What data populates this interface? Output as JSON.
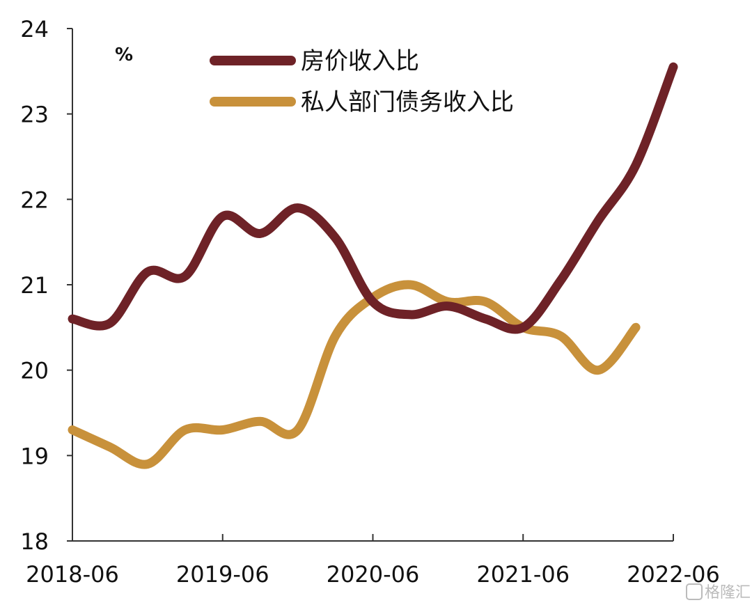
{
  "chart_data": {
    "type": "line",
    "title": "",
    "xlabel": "",
    "ylabel": "",
    "unit": "%",
    "x_ticks": [
      "2018-06",
      "2019-06",
      "2020-06",
      "2021-06",
      "2022-06"
    ],
    "y_ticks": [
      18,
      19,
      20,
      21,
      22,
      23,
      24
    ],
    "xlim": [
      "2018-06",
      "2022-06"
    ],
    "ylim": [
      18,
      24
    ],
    "grid": false,
    "legend_position": "top",
    "series": [
      {
        "name": "房价收入比",
        "color": "#6e2227",
        "points": [
          [
            "2018-06",
            20.6
          ],
          [
            "2018-09",
            20.55
          ],
          [
            "2018-12",
            21.15
          ],
          [
            "2019-03",
            21.1
          ],
          [
            "2019-06",
            21.8
          ],
          [
            "2019-09",
            21.6
          ],
          [
            "2019-12",
            21.9
          ],
          [
            "2020-03",
            21.55
          ],
          [
            "2020-06",
            20.8
          ],
          [
            "2020-09",
            20.65
          ],
          [
            "2020-12",
            20.75
          ],
          [
            "2021-03",
            20.6
          ],
          [
            "2021-06",
            20.5
          ],
          [
            "2021-09",
            21.05
          ],
          [
            "2021-12",
            21.75
          ],
          [
            "2022-03",
            22.4
          ],
          [
            "2022-06",
            23.55
          ]
        ]
      },
      {
        "name": "私人部门债务收入比",
        "color": "#c8913b",
        "points": [
          [
            "2018-06",
            19.3
          ],
          [
            "2018-09",
            19.1
          ],
          [
            "2018-12",
            18.9
          ],
          [
            "2019-03",
            19.3
          ],
          [
            "2019-06",
            19.3
          ],
          [
            "2019-09",
            19.4
          ],
          [
            "2019-12",
            19.3
          ],
          [
            "2020-03",
            20.4
          ],
          [
            "2020-06",
            20.85
          ],
          [
            "2020-09",
            21.0
          ],
          [
            "2020-12",
            20.8
          ],
          [
            "2021-03",
            20.8
          ],
          [
            "2021-06",
            20.5
          ],
          [
            "2021-09",
            20.4
          ],
          [
            "2021-12",
            20.0
          ],
          [
            "2022-03",
            20.5
          ]
        ]
      }
    ]
  },
  "watermark": "格隆汇"
}
